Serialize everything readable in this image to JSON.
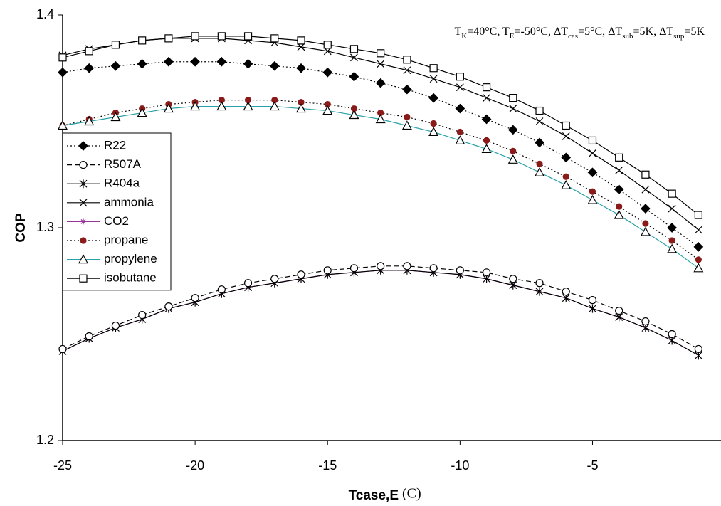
{
  "chart_data": {
    "type": "line",
    "annotation": [
      "T",
      "K",
      "=40°C, T",
      "E",
      "=-50°C, ΔT",
      "cas",
      "=5°C, ΔT",
      "sub",
      "=5K, ΔT",
      "sup",
      "=5K"
    ],
    "xlabel": "Tcase,E",
    "xlabel_unit": "(C)",
    "ylabel": "COP",
    "x": [
      -25,
      -24,
      -23,
      -22,
      -21,
      -20,
      -19,
      -18,
      -17,
      -16,
      -15,
      -14,
      -13,
      -12,
      -11,
      -10,
      -9,
      -8,
      -7,
      -6,
      -5,
      -4,
      -3,
      -2,
      -1
    ],
    "xlim": [
      -25,
      -0.15
    ],
    "xticks": [
      -25,
      -20,
      -15,
      -10,
      -5
    ],
    "ylim": [
      1.2,
      1.4
    ],
    "yticks": [
      {
        "value": 1.2,
        "label": "1.2"
      },
      {
        "value": 1.3,
        "label": "1.3"
      },
      {
        "value": 1.4,
        "label": "1.4"
      }
    ],
    "series": [
      {
        "name": "R22",
        "color": "#000000",
        "marker": "diamond",
        "dash": "dotted",
        "values": [
          1.373,
          1.375,
          1.376,
          1.377,
          1.378,
          1.378,
          1.378,
          1.377,
          1.376,
          1.375,
          1.373,
          1.371,
          1.368,
          1.365,
          1.361,
          1.356,
          1.351,
          1.346,
          1.34,
          1.333,
          1.326,
          1.318,
          1.309,
          1.3,
          1.291
        ]
      },
      {
        "name": "R507A",
        "color": "#000000",
        "marker": "circle",
        "dash": "dashed",
        "values": [
          1.243,
          1.249,
          1.254,
          1.259,
          1.263,
          1.267,
          1.271,
          1.274,
          1.276,
          1.278,
          1.28,
          1.281,
          1.282,
          1.282,
          1.281,
          1.28,
          1.279,
          1.276,
          1.274,
          1.27,
          1.266,
          1.261,
          1.256,
          1.25,
          1.243
        ]
      },
      {
        "name": "R404a",
        "color": "#000000",
        "marker": "asterisk",
        "dash": "solid",
        "values": [
          1.242,
          1.248,
          1.253,
          1.257,
          1.262,
          1.265,
          1.269,
          1.272,
          1.274,
          1.276,
          1.278,
          1.279,
          1.28,
          1.28,
          1.279,
          1.278,
          1.276,
          1.273,
          1.27,
          1.267,
          1.262,
          1.258,
          1.253,
          1.247,
          1.24
        ]
      },
      {
        "name": "ammonia",
        "color": "#000000",
        "marker": "x",
        "dash": "solid",
        "values": [
          1.381,
          1.384,
          1.386,
          1.388,
          1.389,
          1.389,
          1.389,
          1.388,
          1.387,
          1.385,
          1.383,
          1.38,
          1.377,
          1.374,
          1.37,
          1.366,
          1.361,
          1.356,
          1.35,
          1.343,
          1.335,
          1.327,
          1.318,
          1.309,
          1.299
        ]
      },
      {
        "name": "CO2",
        "color": "#993399",
        "marker": "star",
        "dash": "solid",
        "values": [
          1.242,
          1.248,
          1.253,
          1.257,
          1.262,
          1.265,
          1.269,
          1.272,
          1.274,
          1.276,
          1.278,
          1.279,
          1.28,
          1.28,
          1.279,
          1.278,
          1.276,
          1.273,
          1.27,
          1.267,
          1.262,
          1.258,
          1.253,
          1.247,
          1.24
        ]
      },
      {
        "name": "propane",
        "color": "#8b1a1a",
        "marker": "dot",
        "dash": "dotted",
        "values": [
          1.348,
          1.351,
          1.354,
          1.356,
          1.358,
          1.359,
          1.36,
          1.36,
          1.36,
          1.359,
          1.358,
          1.356,
          1.354,
          1.352,
          1.349,
          1.345,
          1.341,
          1.336,
          1.33,
          1.324,
          1.317,
          1.31,
          1.302,
          1.294,
          1.285
        ]
      },
      {
        "name": "propylene",
        "color": "#2aa0a8",
        "marker": "triangle",
        "dash": "solid",
        "values": [
          1.348,
          1.35,
          1.352,
          1.354,
          1.356,
          1.357,
          1.357,
          1.357,
          1.357,
          1.356,
          1.355,
          1.353,
          1.351,
          1.348,
          1.345,
          1.341,
          1.337,
          1.332,
          1.326,
          1.32,
          1.313,
          1.306,
          1.298,
          1.29,
          1.281
        ]
      },
      {
        "name": "isobutane",
        "color": "#000000",
        "marker": "square",
        "dash": "solid",
        "values": [
          1.38,
          1.383,
          1.386,
          1.388,
          1.389,
          1.39,
          1.39,
          1.39,
          1.389,
          1.388,
          1.386,
          1.384,
          1.382,
          1.379,
          1.375,
          1.371,
          1.366,
          1.361,
          1.355,
          1.348,
          1.341,
          1.333,
          1.325,
          1.316,
          1.306
        ]
      }
    ]
  }
}
